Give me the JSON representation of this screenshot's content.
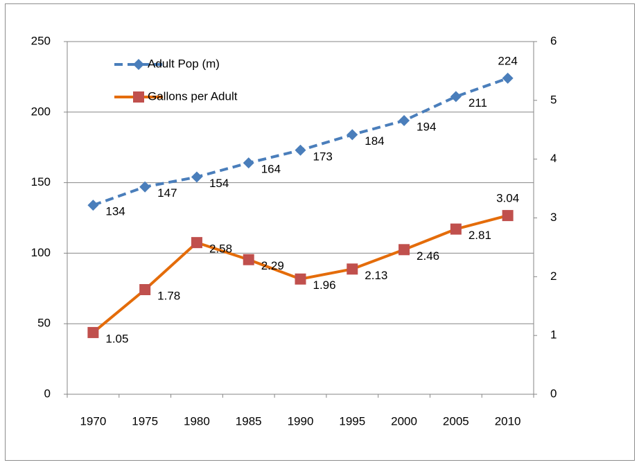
{
  "chart_data": {
    "type": "line",
    "categories": [
      "1970",
      "1975",
      "1980",
      "1985",
      "1990",
      "1995",
      "2000",
      "2005",
      "2010"
    ],
    "series": [
      {
        "name": "Adult Pop (m)",
        "color": "#4a7ebb",
        "marker_color": "#4a7ebb",
        "marker": "diamond",
        "dashed": true,
        "axis": "y",
        "values": [
          134,
          147,
          154,
          164,
          173,
          184,
          194,
          211,
          224
        ]
      },
      {
        "name": "Gallons per Adult",
        "color": "#e46c0a",
        "marker_color": "#c0504d",
        "marker": "square",
        "dashed": false,
        "axis": "y2",
        "values": [
          1.05,
          1.78,
          2.58,
          2.29,
          1.96,
          2.13,
          2.46,
          2.81,
          3.04
        ]
      }
    ],
    "ylim": [
      0,
      250
    ],
    "yticks": [
      0,
      50,
      100,
      150,
      200,
      250
    ],
    "y2lim": [
      0,
      6
    ],
    "y2ticks": [
      0,
      1,
      2,
      3,
      4,
      5,
      6
    ],
    "grid": true,
    "legend": "top-left"
  }
}
